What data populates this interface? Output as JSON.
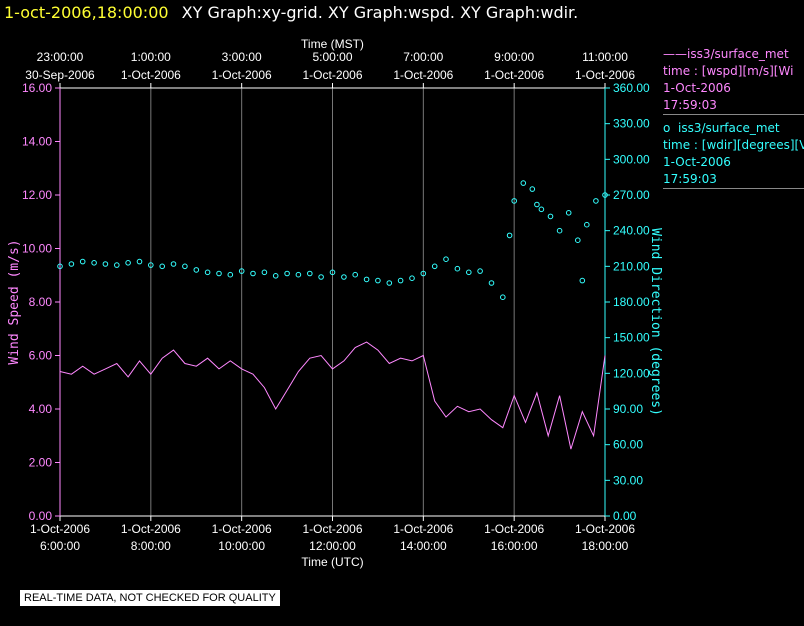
{
  "header": {
    "time": "1-oct-2006,18:00:00",
    "title": "XY Graph:xy-grid.  XY Graph:wspd.  XY Graph:wdir."
  },
  "legend": [
    {
      "symbol": "——",
      "name": "iss3/surface_met",
      "desc": "time : [wspd][m/s][Wi",
      "date": "1-Oct-2006",
      "time": "17:59:03",
      "color": "#ff88ff"
    },
    {
      "symbol": "o",
      "name": "iss3/surface_met",
      "desc": "time : [wdir][degrees][V",
      "date": "1-Oct-2006",
      "time": "17:59:03",
      "color": "#33ffff"
    }
  ],
  "notice": "REAL-TIME DATA, NOT CHECKED FOR QUALITY",
  "chart_data": {
    "type": "line",
    "xlabel_top": "Time (MST)",
    "xlabel_bottom": "Time (UTC)",
    "ylabel_left": "Wind Speed (m/s)",
    "ylabel_right": "Wind Direction (degrees)",
    "ylim_left": [
      0,
      16
    ],
    "ylim_right": [
      0,
      360
    ],
    "x_ticks_top": [
      {
        "x": 0,
        "time": "23:00:00",
        "date": "30-Sep-2006"
      },
      {
        "x": 2,
        "time": "1:00:00",
        "date": "1-Oct-2006"
      },
      {
        "x": 4,
        "time": "3:00:00",
        "date": "1-Oct-2006"
      },
      {
        "x": 6,
        "time": "5:00:00",
        "date": "1-Oct-2006"
      },
      {
        "x": 8,
        "time": "7:00:00",
        "date": "1-Oct-2006"
      },
      {
        "x": 10,
        "time": "9:00:00",
        "date": "1-Oct-2006"
      },
      {
        "x": 12,
        "time": "11:00:00",
        "date": "1-Oct-2006"
      }
    ],
    "x_ticks_bottom": [
      {
        "x": 0,
        "date": "1-Oct-2006",
        "time": "6:00:00"
      },
      {
        "x": 2,
        "date": "1-Oct-2006",
        "time": "8:00:00"
      },
      {
        "x": 4,
        "date": "1-Oct-2006",
        "time": "10:00:00"
      },
      {
        "x": 6,
        "date": "1-Oct-2006",
        "time": "12:00:00"
      },
      {
        "x": 8,
        "date": "1-Oct-2006",
        "time": "14:00:00"
      },
      {
        "x": 10,
        "date": "1-Oct-2006",
        "time": "16:00:00"
      },
      {
        "x": 12,
        "date": "1-Oct-2006",
        "time": "18:00:00"
      }
    ],
    "x_range_hours": [
      0,
      12
    ],
    "y_ticks_left": [
      "0.00",
      "2.00",
      "4.00",
      "6.00",
      "8.00",
      "10.00",
      "12.00",
      "14.00",
      "16.00"
    ],
    "y_ticks_right": [
      "0.00",
      "30.00",
      "60.00",
      "90.00",
      "120.00",
      "150.00",
      "180.00",
      "210.00",
      "240.00",
      "270.00",
      "300.00",
      "330.00",
      "360.00"
    ],
    "grid": true,
    "series": [
      {
        "name": "iss3/surface_met",
        "axis": "left",
        "style": "line",
        "color": "#ff88ff",
        "x": [
          0.0,
          0.25,
          0.5,
          0.75,
          1.0,
          1.25,
          1.5,
          1.75,
          2.0,
          2.25,
          2.5,
          2.75,
          3.0,
          3.25,
          3.5,
          3.75,
          4.0,
          4.25,
          4.5,
          4.75,
          5.0,
          5.25,
          5.5,
          5.75,
          6.0,
          6.25,
          6.5,
          6.75,
          7.0,
          7.25,
          7.5,
          7.75,
          8.0,
          8.25,
          8.5,
          8.75,
          9.0,
          9.25,
          9.5,
          9.75,
          10.0,
          10.25,
          10.5,
          10.75,
          11.0,
          11.25,
          11.5,
          11.75,
          12.0
        ],
        "y": [
          5.4,
          5.3,
          5.6,
          5.3,
          5.5,
          5.7,
          5.2,
          5.8,
          5.3,
          5.9,
          6.2,
          5.7,
          5.6,
          5.9,
          5.5,
          5.8,
          5.5,
          5.3,
          4.8,
          4.0,
          4.7,
          5.4,
          5.9,
          6.0,
          5.5,
          5.8,
          6.3,
          6.5,
          6.2,
          5.7,
          5.9,
          5.8,
          6.0,
          4.3,
          3.7,
          4.1,
          3.9,
          4.0,
          3.6,
          3.3,
          4.5,
          3.5,
          4.6,
          3.0,
          4.5,
          2.5,
          3.9,
          3.0,
          6.0
        ]
      },
      {
        "name": "iss3/surface_met",
        "axis": "right",
        "style": "markers",
        "color": "#33ffff",
        "x": [
          0.0,
          0.25,
          0.5,
          0.75,
          1.0,
          1.25,
          1.5,
          1.75,
          2.0,
          2.25,
          2.5,
          2.75,
          3.0,
          3.25,
          3.5,
          3.75,
          4.0,
          4.25,
          4.5,
          4.75,
          5.0,
          5.25,
          5.5,
          5.75,
          6.0,
          6.25,
          6.5,
          6.75,
          7.0,
          7.25,
          7.5,
          7.75,
          8.0,
          8.25,
          8.5,
          8.75,
          9.0,
          9.25,
          9.5,
          9.75,
          9.9,
          10.0,
          10.2,
          10.4,
          10.5,
          10.6,
          10.8,
          11.0,
          11.2,
          11.4,
          11.5,
          11.6,
          11.8,
          12.0
        ],
        "y": [
          210,
          212,
          214,
          213,
          212,
          211,
          213,
          214,
          211,
          210,
          212,
          210,
          207,
          205,
          204,
          203,
          206,
          204,
          205,
          202,
          204,
          203,
          204,
          201,
          205,
          201,
          203,
          199,
          198,
          196,
          198,
          200,
          204,
          210,
          216,
          208,
          205,
          206,
          196,
          184,
          236,
          265,
          280,
          275,
          262,
          258,
          252,
          240,
          255,
          232,
          198,
          245,
          265,
          270
        ]
      }
    ]
  }
}
